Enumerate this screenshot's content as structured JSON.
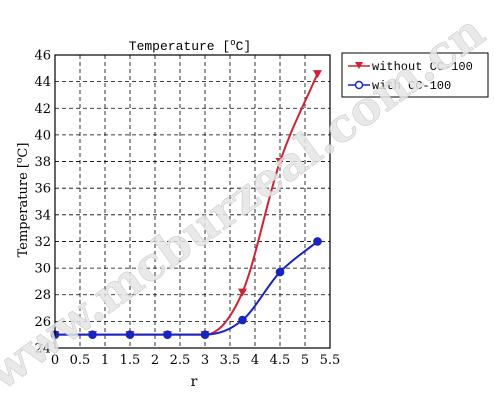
{
  "watermark": "www.mcburzeal.com.cn",
  "chart_data": {
    "type": "line",
    "title": "Temperature [°C]",
    "title_main": "Temperature [",
    "title_unit_sup": "o",
    "title_unit": "C]",
    "xlabel": "r",
    "ylabel_main": "Temperature [",
    "ylabel_unit_sup": "o",
    "ylabel_unit": "C]",
    "xlim": [
      0,
      5.5
    ],
    "ylim": [
      24,
      46
    ],
    "x_ticks": [
      0,
      0.5,
      1,
      1.5,
      2,
      2.5,
      3,
      3.5,
      4,
      4.5,
      5,
      5.5
    ],
    "x_tick_labels": [
      "0",
      "0.5",
      "1",
      "1.5",
      "2",
      "2.5",
      "3",
      "3.5",
      "4",
      "4.5",
      "5",
      "5.5"
    ],
    "y_ticks": [
      24,
      26,
      28,
      30,
      32,
      34,
      36,
      38,
      40,
      42,
      44,
      46
    ],
    "y_tick_labels": [
      "24",
      "26",
      "28",
      "30",
      "32",
      "34",
      "36",
      "38",
      "40",
      "42",
      "44",
      "46"
    ],
    "grid": true,
    "legend_position": "right",
    "series": [
      {
        "name": "without CC-100",
        "color": "#d42032",
        "marker": "triangle-down",
        "x": [
          0,
          0.75,
          1.5,
          2.25,
          3.0,
          3.75,
          4.5,
          5.25
        ],
        "y": [
          25.0,
          25.0,
          25.0,
          25.0,
          25.0,
          28.2,
          38.0,
          44.6
        ]
      },
      {
        "name": "with CC-100",
        "color": "#1424c8",
        "marker": "circle",
        "x": [
          0,
          0.75,
          1.5,
          2.25,
          3.0,
          3.75,
          4.5,
          5.25
        ],
        "y": [
          25.0,
          25.0,
          25.0,
          25.0,
          25.0,
          26.1,
          29.7,
          32.0
        ]
      }
    ]
  }
}
